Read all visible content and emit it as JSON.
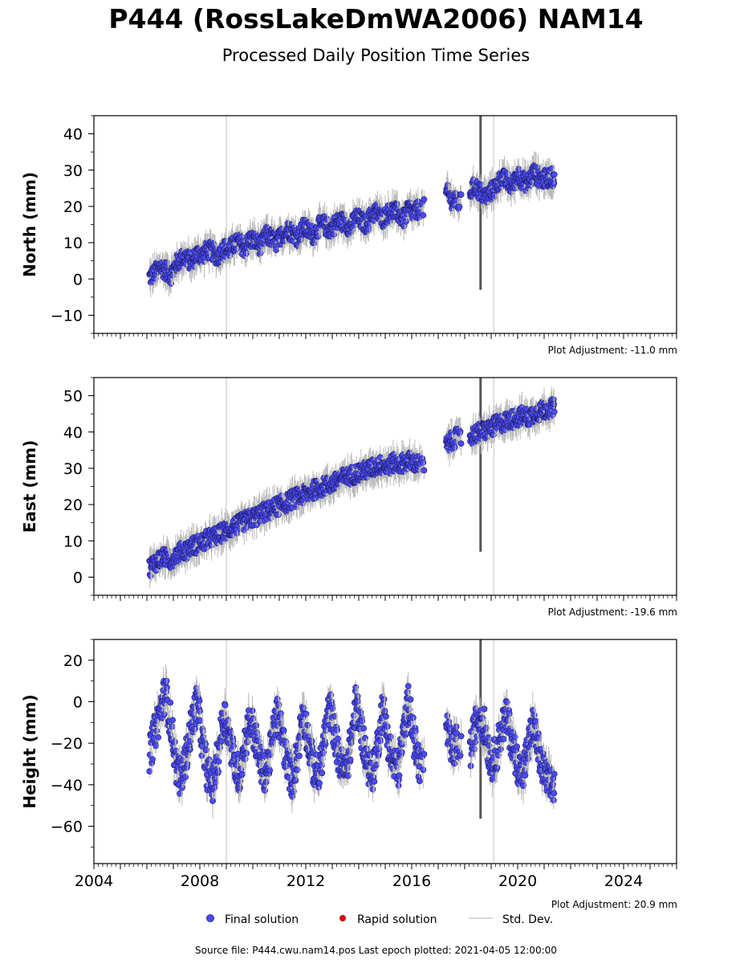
{
  "header": {
    "title": "P444 (RossLakeDmWA2006) NAM14",
    "subtitle": "Processed Daily Position Time Series"
  },
  "legend": {
    "final": "Final solution",
    "rapid": "Rapid solution",
    "std": "Std. Dev."
  },
  "footer": {
    "source": "Source file: P444.cwu.nam14.pos  Last epoch plotted: 2021-04-05 12:00:00"
  },
  "colors": {
    "final": "#4b4bf5",
    "rapid": "#e00000",
    "std": "#b8b8b8",
    "event_line": "#d6d6d6"
  },
  "chart_data": [
    {
      "type": "scatter",
      "name": "north",
      "ylabel": "North (mm)",
      "adjustment": "Plot Adjustment: -11.0 mm",
      "xlim": [
        2004,
        2026
      ],
      "ylim": [
        -15,
        45
      ],
      "yticks": [
        -10,
        0,
        10,
        20,
        30,
        40
      ],
      "xtick_labels": false,
      "event_lines": [
        2009.0,
        2019.1
      ],
      "series": [
        {
          "name": "Final solution",
          "x": [
            2006.1,
            2006.3,
            2006.5,
            2006.7,
            2006.9,
            2007.1,
            2007.3,
            2007.5,
            2007.7,
            2007.9,
            2008.1,
            2008.3,
            2008.5,
            2008.7,
            2008.9,
            2009.1,
            2009.3,
            2009.5,
            2009.7,
            2009.9,
            2010.1,
            2010.3,
            2010.5,
            2010.7,
            2010.9,
            2011.1,
            2011.3,
            2011.5,
            2011.7,
            2011.9,
            2012.1,
            2012.3,
            2012.5,
            2012.7,
            2012.9,
            2013.1,
            2013.3,
            2013.5,
            2013.7,
            2013.9,
            2014.1,
            2014.3,
            2014.5,
            2014.7,
            2014.9,
            2015.1,
            2015.3,
            2015.5,
            2015.7,
            2015.9,
            2016.1,
            2016.3,
            2017.3,
            2017.5,
            2017.7,
            2018.2,
            2018.4,
            2018.6,
            2018.8,
            2019.0,
            2019.2,
            2019.4,
            2019.6,
            2019.8,
            2020.0,
            2020.2,
            2020.4,
            2020.6,
            2020.8,
            2021.0,
            2021.2
          ],
          "y": [
            0.5,
            1.5,
            3.5,
            2.5,
            1.0,
            4.0,
            5.5,
            6.0,
            4.5,
            7.0,
            6.5,
            8.0,
            7.5,
            6.0,
            8.5,
            8.0,
            9.5,
            10.0,
            8.5,
            11.0,
            10.5,
            9.0,
            12.0,
            11.5,
            10.0,
            12.0,
            13.5,
            13.0,
            11.5,
            14.0,
            13.5,
            12.0,
            14.5,
            15.0,
            13.5,
            15.0,
            16.0,
            15.5,
            14.0,
            17.0,
            16.0,
            15.0,
            18.0,
            18.5,
            16.5,
            18.0,
            19.0,
            18.0,
            16.5,
            19.5,
            18.0,
            19.5,
            24.0,
            22.0,
            21.0,
            24.0,
            25.5,
            24.0,
            22.5,
            24.0,
            25.5,
            28.0,
            27.0,
            25.5,
            29.0,
            27.0,
            26.5,
            29.5,
            28.0,
            27.5,
            28.0
          ]
        },
        {
          "name": "Rapid solution",
          "x": [],
          "y": []
        }
      ]
    },
    {
      "type": "scatter",
      "name": "east",
      "ylabel": "East (mm)",
      "adjustment": "Plot Adjustment: -19.6 mm",
      "xlim": [
        2004,
        2026
      ],
      "ylim": [
        -5,
        55
      ],
      "yticks": [
        0,
        10,
        20,
        30,
        40,
        50
      ],
      "xtick_labels": false,
      "event_lines": [
        2009.0,
        2019.1
      ],
      "series": [
        {
          "name": "Final solution",
          "x": [
            2006.1,
            2006.3,
            2006.5,
            2006.7,
            2006.9,
            2007.1,
            2007.3,
            2007.5,
            2007.7,
            2007.9,
            2008.1,
            2008.3,
            2008.5,
            2008.7,
            2008.9,
            2009.1,
            2009.3,
            2009.5,
            2009.7,
            2009.9,
            2010.1,
            2010.3,
            2010.5,
            2010.7,
            2010.9,
            2011.1,
            2011.3,
            2011.5,
            2011.7,
            2011.9,
            2012.1,
            2012.3,
            2012.5,
            2012.7,
            2012.9,
            2013.1,
            2013.3,
            2013.5,
            2013.7,
            2013.9,
            2014.1,
            2014.3,
            2014.5,
            2014.7,
            2014.9,
            2015.1,
            2015.3,
            2015.5,
            2015.7,
            2015.9,
            2016.1,
            2016.3,
            2017.3,
            2017.5,
            2017.7,
            2018.2,
            2018.4,
            2018.6,
            2018.8,
            2019.0,
            2019.2,
            2019.4,
            2019.6,
            2019.8,
            2020.0,
            2020.2,
            2020.4,
            2020.6,
            2020.8,
            2021.0,
            2021.2
          ],
          "y": [
            2.5,
            4.0,
            5.0,
            5.5,
            4.5,
            6.0,
            7.0,
            7.5,
            8.5,
            9.0,
            9.5,
            10.5,
            11.0,
            11.5,
            12.5,
            13.0,
            14.0,
            14.5,
            15.5,
            16.0,
            16.5,
            17.5,
            18.0,
            18.5,
            19.5,
            20.0,
            20.5,
            21.5,
            22.0,
            22.5,
            23.0,
            24.0,
            24.5,
            25.0,
            25.5,
            26.0,
            27.0,
            27.5,
            28.0,
            28.5,
            29.0,
            29.5,
            30.0,
            30.5,
            31.0,
            30.5,
            31.5,
            31.0,
            31.5,
            32.0,
            31.5,
            31.0,
            36.0,
            37.5,
            38.5,
            38.5,
            39.5,
            40.0,
            40.5,
            41.0,
            42.0,
            42.5,
            43.0,
            43.5,
            44.0,
            44.5,
            44.0,
            45.0,
            45.5,
            46.0,
            46.5
          ]
        },
        {
          "name": "Rapid solution",
          "x": [],
          "y": []
        }
      ]
    },
    {
      "type": "scatter",
      "name": "height",
      "ylabel": "Height (mm)",
      "adjustment": "Plot Adjustment: 20.9 mm",
      "xlim": [
        2004,
        2026
      ],
      "ylim": [
        -78,
        30
      ],
      "yticks": [
        -60,
        -40,
        -20,
        0,
        20
      ],
      "xtick_labels": true,
      "xticks": [
        2004,
        2008,
        2012,
        2016,
        2020,
        2024
      ],
      "event_lines": [
        2009.0,
        2019.1
      ],
      "series": [
        {
          "name": "Final solution",
          "x": [
            2006.1,
            2006.3,
            2006.5,
            2006.7,
            2006.9,
            2007.1,
            2007.3,
            2007.5,
            2007.7,
            2007.9,
            2008.1,
            2008.3,
            2008.5,
            2008.7,
            2008.9,
            2009.1,
            2009.3,
            2009.5,
            2009.7,
            2009.9,
            2010.1,
            2010.3,
            2010.5,
            2010.7,
            2010.9,
            2011.1,
            2011.3,
            2011.5,
            2011.7,
            2011.9,
            2012.1,
            2012.3,
            2012.5,
            2012.7,
            2012.9,
            2013.1,
            2013.3,
            2013.5,
            2013.7,
            2013.9,
            2014.1,
            2014.3,
            2014.5,
            2014.7,
            2014.9,
            2015.1,
            2015.3,
            2015.5,
            2015.7,
            2015.9,
            2016.1,
            2016.3,
            2017.3,
            2017.5,
            2017.7,
            2018.2,
            2018.4,
            2018.6,
            2018.8,
            2019.0,
            2019.2,
            2019.4,
            2019.6,
            2019.8,
            2020.0,
            2020.2,
            2020.4,
            2020.6,
            2020.8,
            2021.0,
            2021.2
          ],
          "y": [
            -25,
            -15,
            -5,
            5,
            -10,
            -30,
            -38,
            -25,
            -10,
            0,
            -20,
            -35,
            -40,
            -25,
            -5,
            -15,
            -30,
            -35,
            -20,
            -8,
            -18,
            -30,
            -35,
            -22,
            -5,
            -15,
            -30,
            -38,
            -24,
            -3,
            -20,
            -32,
            -36,
            -18,
            -2,
            -16,
            -30,
            -34,
            -20,
            0,
            -14,
            -28,
            -36,
            -22,
            -2,
            -18,
            -30,
            -32,
            -15,
            2,
            -20,
            -30,
            -10,
            -25,
            -20,
            -25,
            -12,
            -5,
            -15,
            -30,
            -25,
            -12,
            -8,
            -20,
            -30,
            -35,
            -22,
            -10,
            -25,
            -35,
            -40
          ]
        },
        {
          "name": "Rapid solution",
          "x": [],
          "y": []
        }
      ]
    }
  ]
}
